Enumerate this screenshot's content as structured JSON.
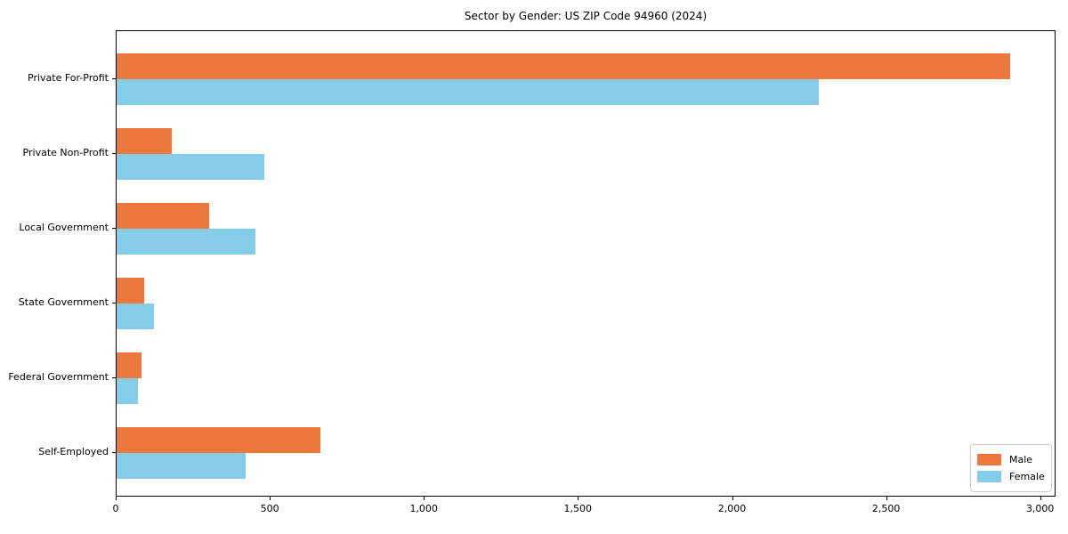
{
  "title": "Sector by Gender: US ZIP Code 94960 (2024)",
  "chart_data": {
    "type": "bar",
    "orientation": "horizontal",
    "title": "Sector by Gender: US ZIP Code 94960 (2024)",
    "categories": [
      "Private For-Profit",
      "Private Non-Profit",
      "Local Government",
      "State Government",
      "Federal Government",
      "Self-Employed"
    ],
    "series": [
      {
        "name": "Male",
        "color": "#eb783c",
        "values": [
          2900,
          180,
          300,
          90,
          80,
          660
        ]
      },
      {
        "name": "Female",
        "color": "#85cce8",
        "values": [
          2280,
          480,
          450,
          120,
          70,
          420
        ]
      }
    ],
    "xlabel": "",
    "ylabel": "",
    "xlim": [
      0,
      3050
    ],
    "xticks": [
      0,
      500,
      1000,
      1500,
      2000,
      2500,
      3000
    ],
    "xtick_labels": [
      "0",
      "500",
      "1,000",
      "1,500",
      "2,000",
      "2,500",
      "3,000"
    ],
    "grid": false,
    "legend_position": "lower right",
    "colors": {
      "male": "#eb783c",
      "female": "#85cce8",
      "spine": "#000000",
      "text": "#000000"
    }
  }
}
